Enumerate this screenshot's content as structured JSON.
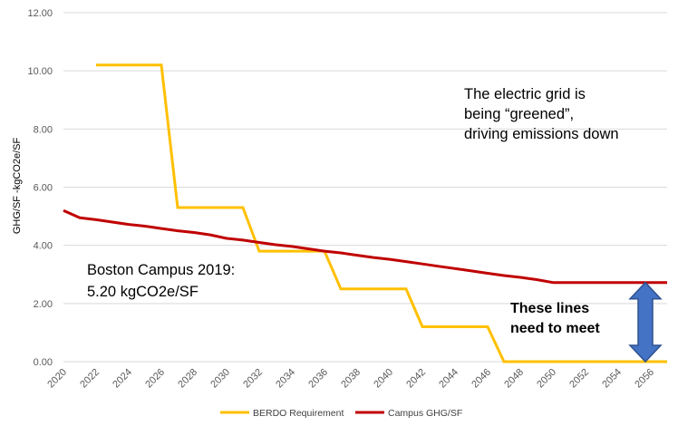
{
  "chart_data": {
    "type": "line",
    "title": "",
    "xlabel": "",
    "ylabel": "GHG/SF -kgCO2e/SF",
    "ylim": [
      0,
      12
    ],
    "yticks": [
      "0.00",
      "2.00",
      "4.00",
      "6.00",
      "8.00",
      "10.00",
      "12.00"
    ],
    "ytick_values": [
      0,
      2,
      4,
      6,
      8,
      10,
      12
    ],
    "xlim": [
      2020,
      2057
    ],
    "xticks": [
      "2020",
      "2022",
      "2024",
      "2026",
      "2028",
      "2030",
      "2032",
      "2034",
      "2036",
      "2038",
      "2040",
      "2042",
      "2044",
      "2046",
      "2048",
      "2050",
      "2052",
      "2054",
      "2056"
    ],
    "grid": "horizontal",
    "legend_position": "bottom",
    "series": [
      {
        "name": "BERDO Requirement",
        "color": "#FFC000",
        "points": [
          [
            2022,
            10.2
          ],
          [
            2026,
            10.2
          ],
          [
            2027,
            5.3
          ],
          [
            2031,
            5.3
          ],
          [
            2032,
            3.8
          ],
          [
            2036,
            3.8
          ],
          [
            2037,
            2.5
          ],
          [
            2041,
            2.5
          ],
          [
            2042,
            1.2
          ],
          [
            2046,
            1.2
          ],
          [
            2047,
            0.0
          ],
          [
            2057,
            0.0
          ]
        ]
      },
      {
        "name": "Campus GHG/SF",
        "color": "#C00000",
        "points": [
          [
            2020,
            5.2
          ],
          [
            2021,
            4.95
          ],
          [
            2022,
            4.88
          ],
          [
            2023,
            4.8
          ],
          [
            2024,
            4.72
          ],
          [
            2025,
            4.66
          ],
          [
            2026,
            4.58
          ],
          [
            2027,
            4.5
          ],
          [
            2028,
            4.44
          ],
          [
            2029,
            4.36
          ],
          [
            2030,
            4.24
          ],
          [
            2031,
            4.18
          ],
          [
            2032,
            4.1
          ],
          [
            2033,
            4.02
          ],
          [
            2034,
            3.96
          ],
          [
            2035,
            3.88
          ],
          [
            2036,
            3.8
          ],
          [
            2037,
            3.74
          ],
          [
            2038,
            3.66
          ],
          [
            2039,
            3.58
          ],
          [
            2040,
            3.52
          ],
          [
            2041,
            3.44
          ],
          [
            2042,
            3.36
          ],
          [
            2043,
            3.28
          ],
          [
            2044,
            3.2
          ],
          [
            2045,
            3.12
          ],
          [
            2046,
            3.04
          ],
          [
            2047,
            2.96
          ],
          [
            2048,
            2.9
          ],
          [
            2049,
            2.82
          ],
          [
            2050,
            2.72
          ],
          [
            2051,
            2.72
          ],
          [
            2052,
            2.72
          ],
          [
            2053,
            2.72
          ],
          [
            2054,
            2.72
          ],
          [
            2055,
            2.72
          ],
          [
            2056,
            2.72
          ],
          [
            2057,
            2.72
          ]
        ]
      }
    ],
    "annotations": {
      "campus_line1": "Boston Campus 2019:",
      "campus_line2": "5.20 kgCO2e/SF",
      "grid_line1": "The electric grid is",
      "grid_line2": "being “greened”,",
      "grid_line3": "driving emissions down",
      "meet_line1": "These lines",
      "meet_line2": "need to meet"
    },
    "arrow": {
      "color": "#4472C4",
      "fill": "#4472C4",
      "x": 2056,
      "y_top": 2.72,
      "y_bottom": 0.0
    }
  }
}
